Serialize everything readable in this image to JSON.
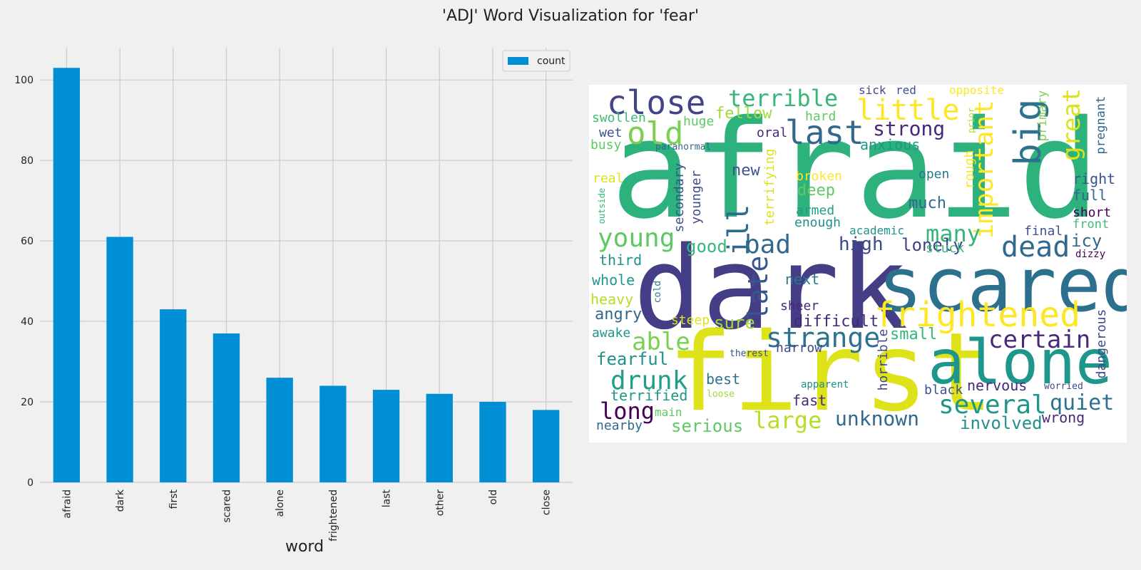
{
  "figure_title": "'ADJ' Word Visualization for 'fear'",
  "chart_data": {
    "type": "bar",
    "categories": [
      "afraid",
      "dark",
      "first",
      "scared",
      "alone",
      "frightened",
      "last",
      "other",
      "old",
      "close"
    ],
    "series": [
      {
        "name": "count",
        "values": [
          103,
          61,
          43,
          37,
          26,
          24,
          23,
          22,
          20,
          18
        ]
      }
    ],
    "xlabel": "word",
    "ylabel": "",
    "ylim": [
      0,
      108
    ],
    "yticks": [
      0,
      20,
      40,
      60,
      80,
      100
    ],
    "grid": true,
    "legend": "top-right",
    "bar_color": "#008fd5"
  },
  "wordcloud": {
    "words": [
      {
        "text": "afraid",
        "color": "#2db27d"
      },
      {
        "text": "dark",
        "color": "#433e85"
      },
      {
        "text": "scared",
        "color": "#2d708e"
      },
      {
        "text": "first",
        "color": "#dde318"
      },
      {
        "text": "alone",
        "color": "#1f968b"
      },
      {
        "text": "frightened",
        "color": "#fde725"
      },
      {
        "text": "close",
        "color": "#414487"
      },
      {
        "text": "old",
        "color": "#7ad151"
      },
      {
        "text": "terrible",
        "color": "#35b779"
      },
      {
        "text": "little",
        "color": "#fde725"
      },
      {
        "text": "last",
        "color": "#31688e"
      },
      {
        "text": "strong",
        "color": "#482878"
      },
      {
        "text": "big",
        "color": "#2c728e"
      },
      {
        "text": "great",
        "color": "#dde318"
      },
      {
        "text": "important",
        "color": "#fde725"
      },
      {
        "text": "ill",
        "color": "#31688e"
      },
      {
        "text": "late",
        "color": "#39568c"
      },
      {
        "text": "young",
        "color": "#5ec962"
      },
      {
        "text": "bad",
        "color": "#31688e"
      },
      {
        "text": "many",
        "color": "#35b779"
      },
      {
        "text": "dead",
        "color": "#30698e"
      },
      {
        "text": "strange",
        "color": "#2c728e"
      },
      {
        "text": "certain",
        "color": "#482878"
      },
      {
        "text": "able",
        "color": "#7ad151"
      },
      {
        "text": "drunk",
        "color": "#1f9e89"
      },
      {
        "text": "several",
        "color": "#1f968b"
      },
      {
        "text": "quiet",
        "color": "#2c728e"
      },
      {
        "text": "long",
        "color": "#440154"
      },
      {
        "text": "large",
        "color": "#b5de2b"
      },
      {
        "text": "unknown",
        "color": "#31688e"
      },
      {
        "text": "involved",
        "color": "#21918c"
      },
      {
        "text": "serious",
        "color": "#5ec962"
      },
      {
        "text": "high",
        "color": "#3e4989"
      },
      {
        "text": "lonely",
        "color": "#414487"
      },
      {
        "text": "good",
        "color": "#35b779"
      },
      {
        "text": "sure",
        "color": "#a0da39"
      },
      {
        "text": "small",
        "color": "#35b779"
      },
      {
        "text": "difficult",
        "color": "#482878"
      },
      {
        "text": "new",
        "color": "#3b528b"
      },
      {
        "text": "deep",
        "color": "#5ec962"
      },
      {
        "text": "much",
        "color": "#31688e"
      },
      {
        "text": "icy",
        "color": "#31688e"
      },
      {
        "text": "anxious",
        "color": "#1f968b"
      },
      {
        "text": "fellow",
        "color": "#a0da39"
      },
      {
        "text": "huge",
        "color": "#5ec962"
      },
      {
        "text": "swollen",
        "color": "#3fbc73"
      },
      {
        "text": "wet",
        "color": "#3b528b"
      },
      {
        "text": "busy",
        "color": "#5ec962"
      },
      {
        "text": "oral",
        "color": "#482878"
      },
      {
        "text": "hard",
        "color": "#5ec962"
      },
      {
        "text": "sick",
        "color": "#3e4989"
      },
      {
        "text": "red",
        "color": "#3b528b"
      },
      {
        "text": "opposite",
        "color": "#fde725"
      },
      {
        "text": "primary",
        "color": "#7ad151"
      },
      {
        "text": "pregnant",
        "color": "#31688e"
      },
      {
        "text": "prior",
        "color": "#b5de2b"
      },
      {
        "text": "rough",
        "color": "#fde725"
      },
      {
        "text": "right",
        "color": "#3b528b"
      },
      {
        "text": "full",
        "color": "#31688e"
      },
      {
        "text": "short",
        "color": "#440154"
      },
      {
        "text": "front",
        "color": "#3fbc73"
      },
      {
        "text": "final",
        "color": "#3b528b"
      },
      {
        "text": "dizzy",
        "color": "#440154"
      },
      {
        "text": "open",
        "color": "#2a788e"
      },
      {
        "text": "broken",
        "color": "#fde725"
      },
      {
        "text": "armed",
        "color": "#1f9e89"
      },
      {
        "text": "enough",
        "color": "#21918c"
      },
      {
        "text": "academic",
        "color": "#21918c"
      },
      {
        "text": "stuck",
        "color": "#35b779"
      },
      {
        "text": "real",
        "color": "#dde318"
      },
      {
        "text": "outside",
        "color": "#35b779"
      },
      {
        "text": "paranormal",
        "color": "#31688e"
      },
      {
        "text": "terrifying",
        "color": "#dde318"
      },
      {
        "text": "secondary",
        "color": "#3b528b"
      },
      {
        "text": "younger",
        "color": "#3e4989"
      },
      {
        "text": "third",
        "color": "#21918c"
      },
      {
        "text": "whole",
        "color": "#1f968b"
      },
      {
        "text": "heavy",
        "color": "#b5de2b"
      },
      {
        "text": "cold",
        "color": "#2a788e"
      },
      {
        "text": "angry",
        "color": "#31688e"
      },
      {
        "text": "awake",
        "color": "#1f968b"
      },
      {
        "text": "steep",
        "color": "#dde318"
      },
      {
        "text": "next",
        "color": "#2a788e"
      },
      {
        "text": "sheer",
        "color": "#482878"
      },
      {
        "text": "narrow",
        "color": "#3e4989"
      },
      {
        "text": "fearful",
        "color": "#21918c"
      },
      {
        "text": "best",
        "color": "#2c728e"
      },
      {
        "text": "therest",
        "color": "#3b528b"
      },
      {
        "text": "horrible",
        "color": "#3e4989"
      },
      {
        "text": "terrified",
        "color": "#1f968b"
      },
      {
        "text": "loose",
        "color": "#a0da39"
      },
      {
        "text": "apparent",
        "color": "#21918c"
      },
      {
        "text": "fast",
        "color": "#482878"
      },
      {
        "text": "main",
        "color": "#5ec962"
      },
      {
        "text": "nearby",
        "color": "#31688e"
      },
      {
        "text": "nervous",
        "color": "#482878"
      },
      {
        "text": "worried",
        "color": "#3e4989"
      },
      {
        "text": "black",
        "color": "#3b528b"
      },
      {
        "text": "wrong",
        "color": "#482878"
      },
      {
        "text": "dangerous",
        "color": "#3e4989"
      }
    ]
  }
}
